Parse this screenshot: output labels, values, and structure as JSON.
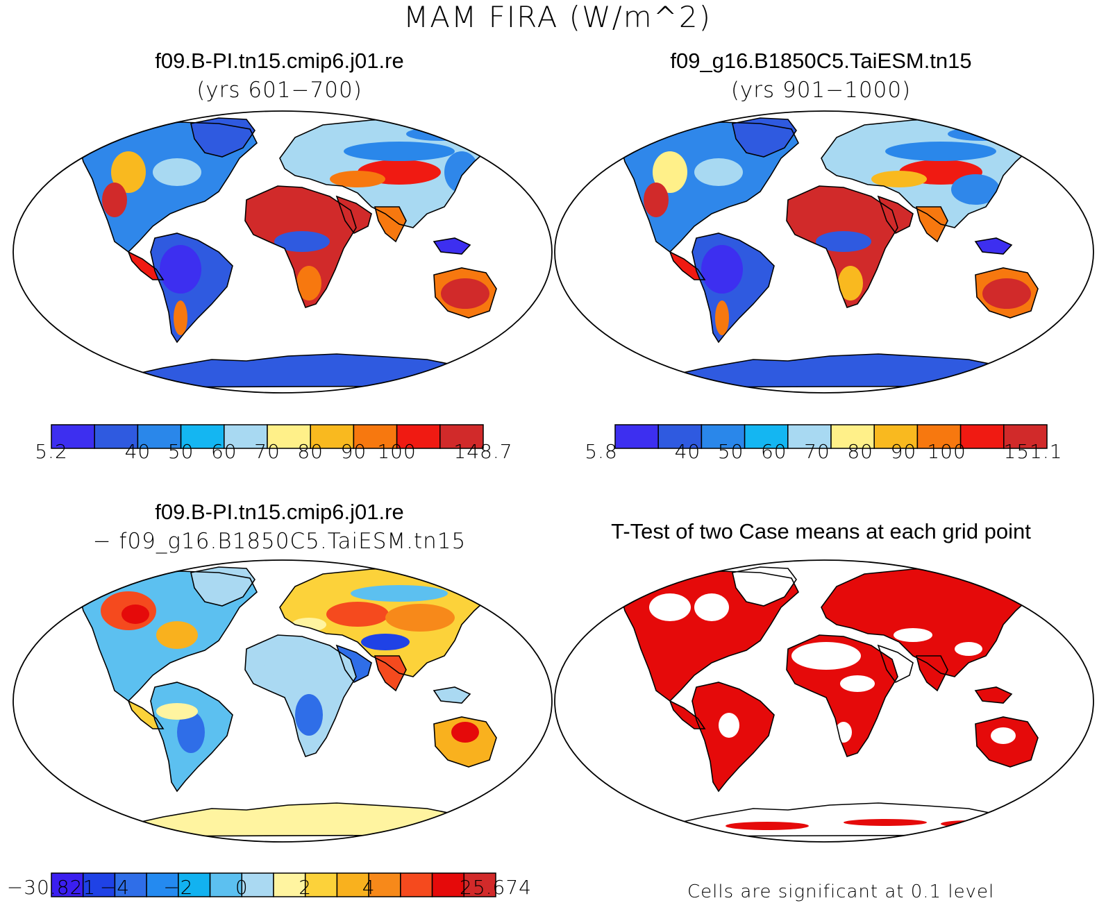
{
  "figure": {
    "title": "MAM FIRA (W/m^2)"
  },
  "panels": [
    {
      "title": "f09.B-PI.tn15.cmip6.j01.re",
      "subtitle": "(yrs 601−700)",
      "colorbar": {
        "colors": [
          "#3d2ff0",
          "#2f5ae0",
          "#2a87ea",
          "#14b6f2",
          "#a8d9f2",
          "#fff089",
          "#f9b91f",
          "#f7780f",
          "#f01a12",
          "#d12a2a"
        ],
        "labels": [
          "5.2",
          "",
          "40",
          "50",
          "60",
          "70",
          "80",
          "90",
          "100",
          "",
          "148.7"
        ]
      }
    },
    {
      "title": "f09_g16.B1850C5.TaiESM.tn15",
      "subtitle": "(yrs 901−1000)",
      "colorbar": {
        "colors": [
          "#3d2ff0",
          "#2f5ae0",
          "#2a87ea",
          "#14b6f2",
          "#a8d9f2",
          "#fff089",
          "#f9b91f",
          "#f7780f",
          "#f01a12",
          "#d12a2a"
        ],
        "labels": [
          "5.8",
          "",
          "40",
          "50",
          "60",
          "70",
          "80",
          "90",
          "100",
          "",
          "151.1"
        ]
      }
    },
    {
      "title": "f09.B-PI.tn15.cmip6.j01.re",
      "subtitle": "− f09_g16.B1850C5.TaiESM.tn15",
      "colorbar": {
        "colors": [
          "#3b1ff0",
          "#1f42e6",
          "#2f6ee8",
          "#248af0",
          "#12b2f0",
          "#5cc0f0",
          "#aad9f2",
          "#fff4a0",
          "#fcd23a",
          "#f9b11e",
          "#f7891a",
          "#f54a1e",
          "#e50a0a",
          "#d22a2a"
        ],
        "labels": [
          "−30.821",
          "",
          "−4",
          "",
          "−2",
          "",
          "0",
          "",
          "2",
          "",
          "4",
          "",
          "",
          "",
          "25.674"
        ]
      }
    },
    {
      "title": "T-Test of two Case means at each grid point",
      "note": "Cells are significant at 0.1 level"
    }
  ]
}
